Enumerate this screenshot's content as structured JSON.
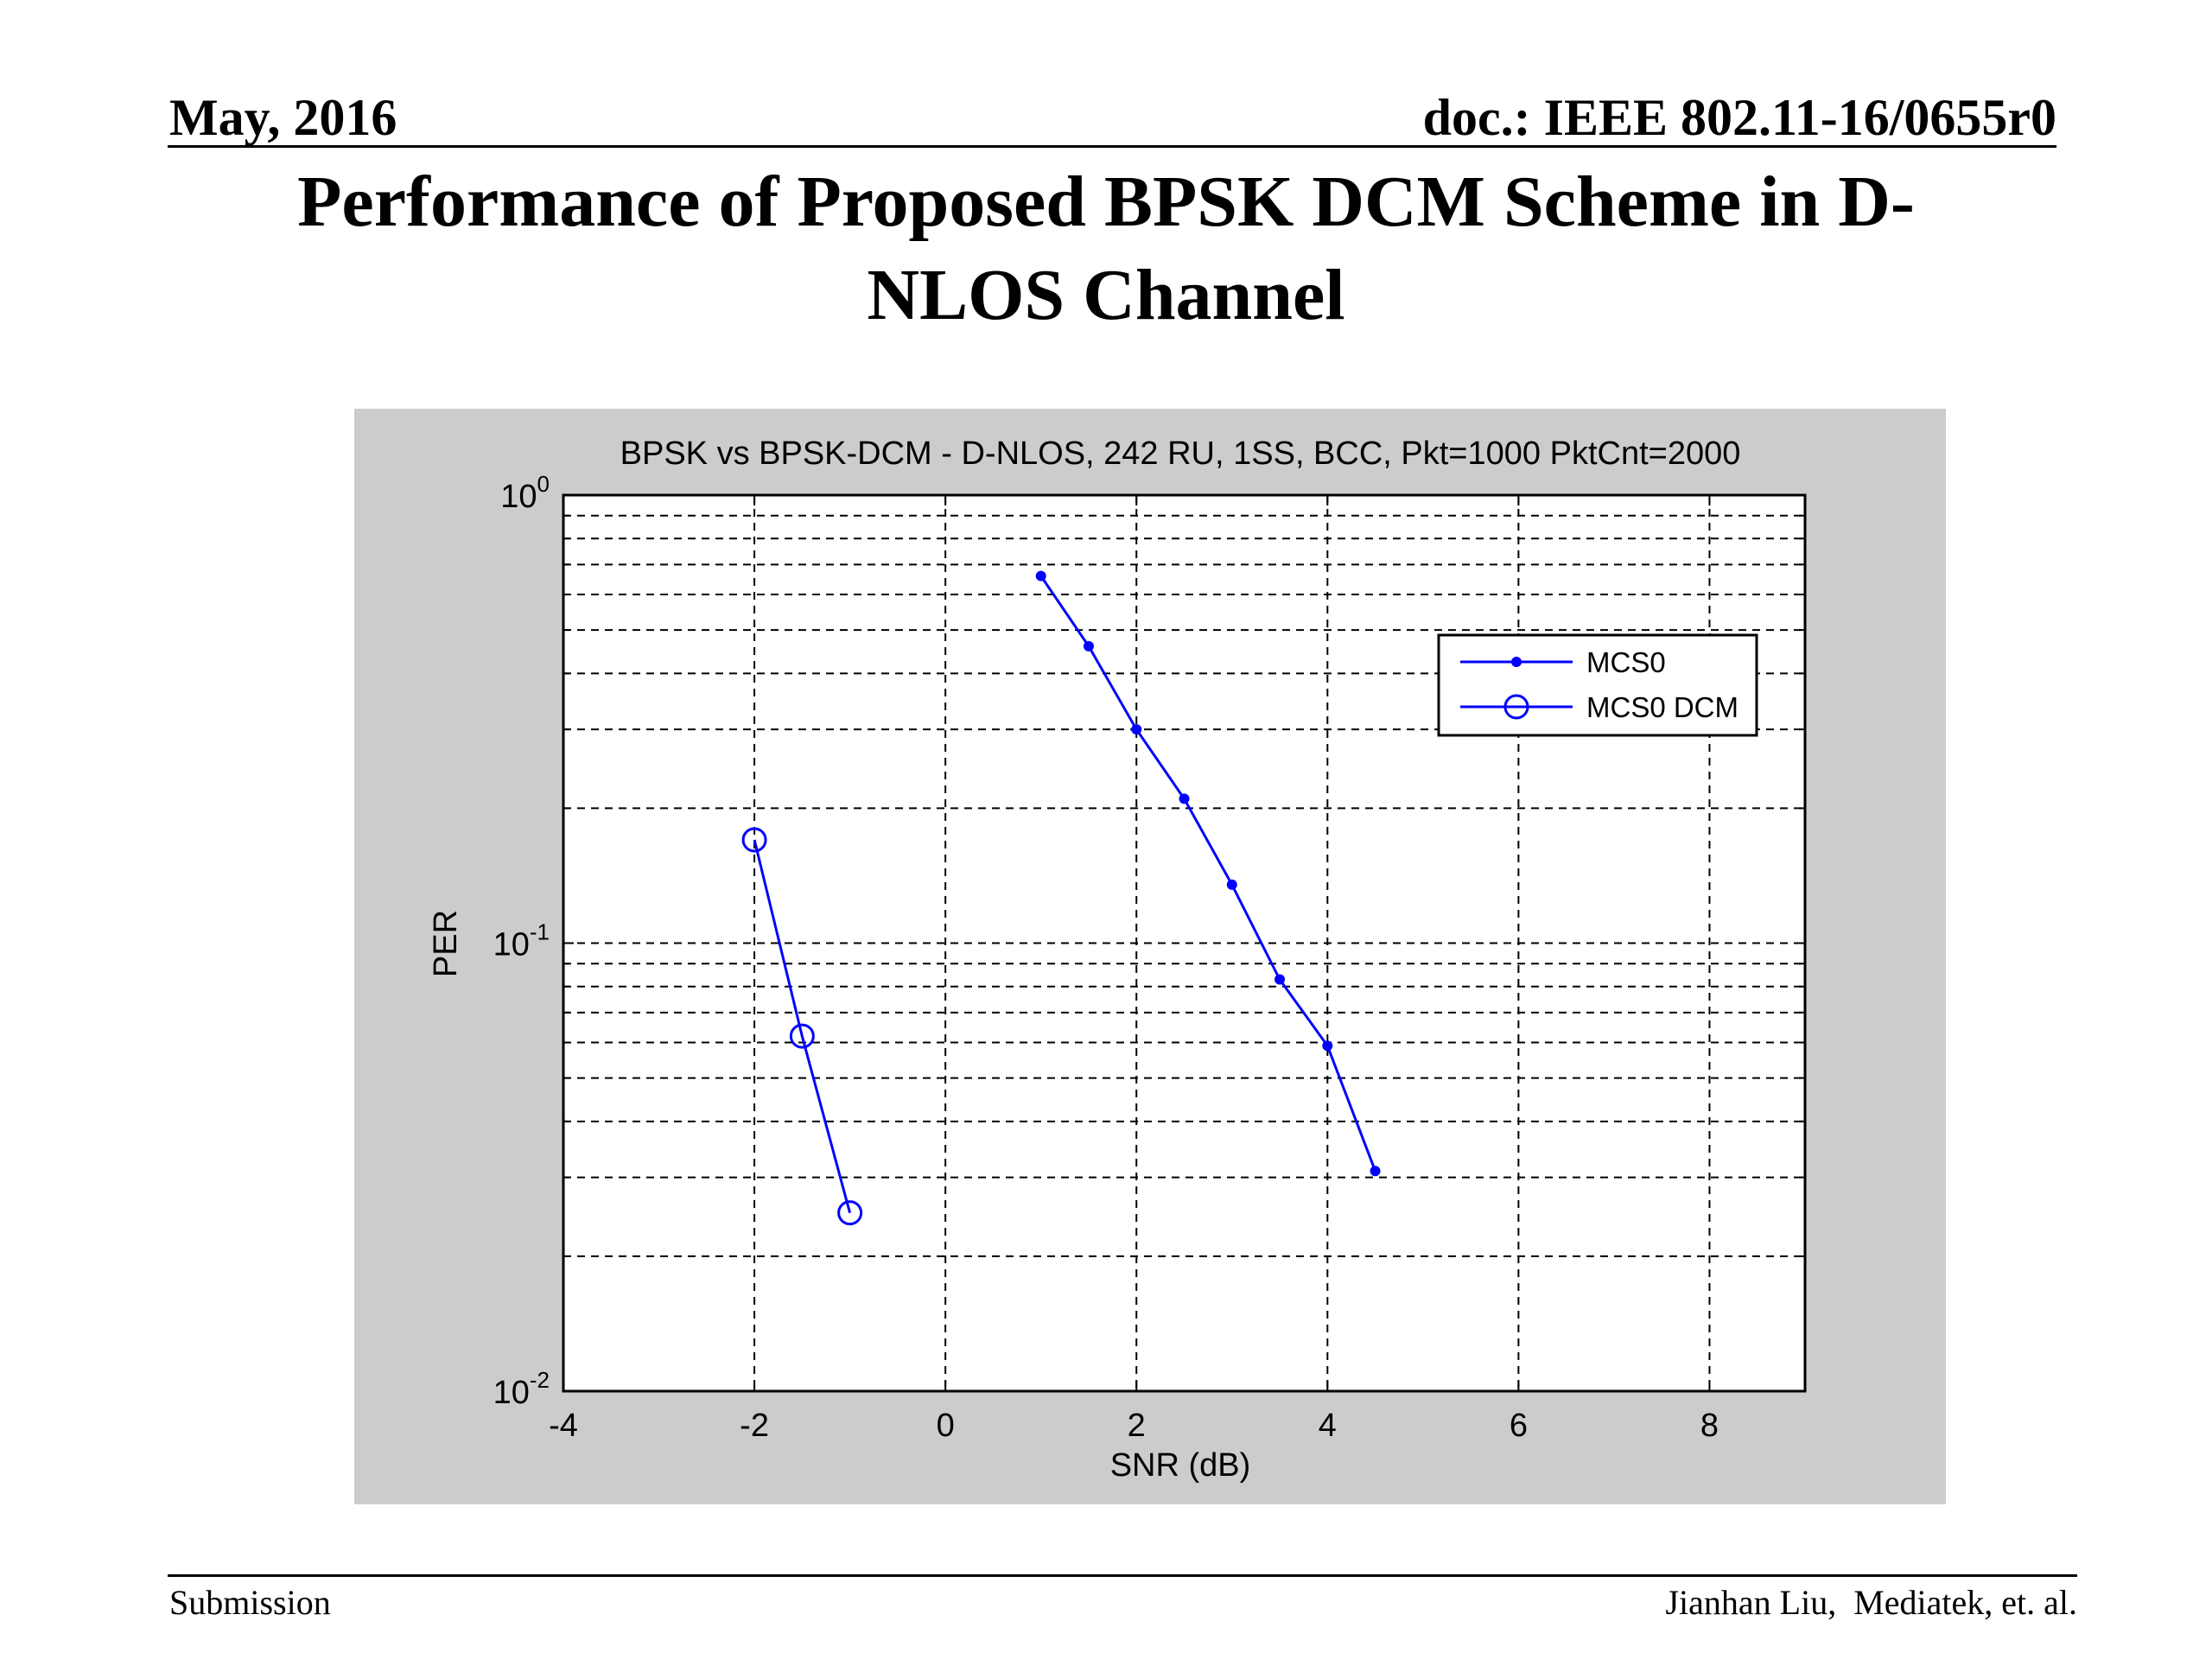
{
  "header": {
    "date": "May, 2016",
    "doc": "doc.: IEEE 802.11-16/0655r0"
  },
  "slide": {
    "title_line1": "Performance of Proposed BPSK DCM Scheme in D-",
    "title_line2": "NLOS Channel"
  },
  "footer": {
    "left": "Submission",
    "right": "Jianhan Liu,  Mediatek, et. al."
  },
  "chart_data": {
    "type": "line",
    "title": "BPSK vs BPSK-DCM - D-NLOS, 242 RU, 1SS, BCC, Pkt=1000 PktCnt=2000",
    "xlabel": "SNR (dB)",
    "ylabel": "PER",
    "xlim": [
      -4,
      9
    ],
    "ylim": [
      0.01,
      1
    ],
    "yscale": "log",
    "grid": true,
    "grid_style": "dashed",
    "legend_position": "top-right",
    "x_ticks": [
      -4,
      -2,
      0,
      2,
      4,
      6,
      8
    ],
    "y_ticks": [
      {
        "base": "10",
        "exp": "0",
        "value": 1
      },
      {
        "base": "10",
        "exp": "-1",
        "value": 0.1
      },
      {
        "base": "10",
        "exp": "-2",
        "value": 0.01
      }
    ],
    "series": [
      {
        "name": "MCS0",
        "marker": "dot",
        "color": "#0000ff",
        "x": [
          1,
          1.5,
          2,
          2.5,
          3,
          3.5,
          4,
          4.5
        ],
        "y": [
          0.66,
          0.46,
          0.3,
          0.21,
          0.135,
          0.083,
          0.059,
          0.031
        ]
      },
      {
        "name": "MCS0 DCM",
        "marker": "circle",
        "color": "#0000ff",
        "x": [
          -2,
          -1.5,
          -1
        ],
        "y": [
          0.17,
          0.062,
          0.025
        ]
      }
    ]
  }
}
